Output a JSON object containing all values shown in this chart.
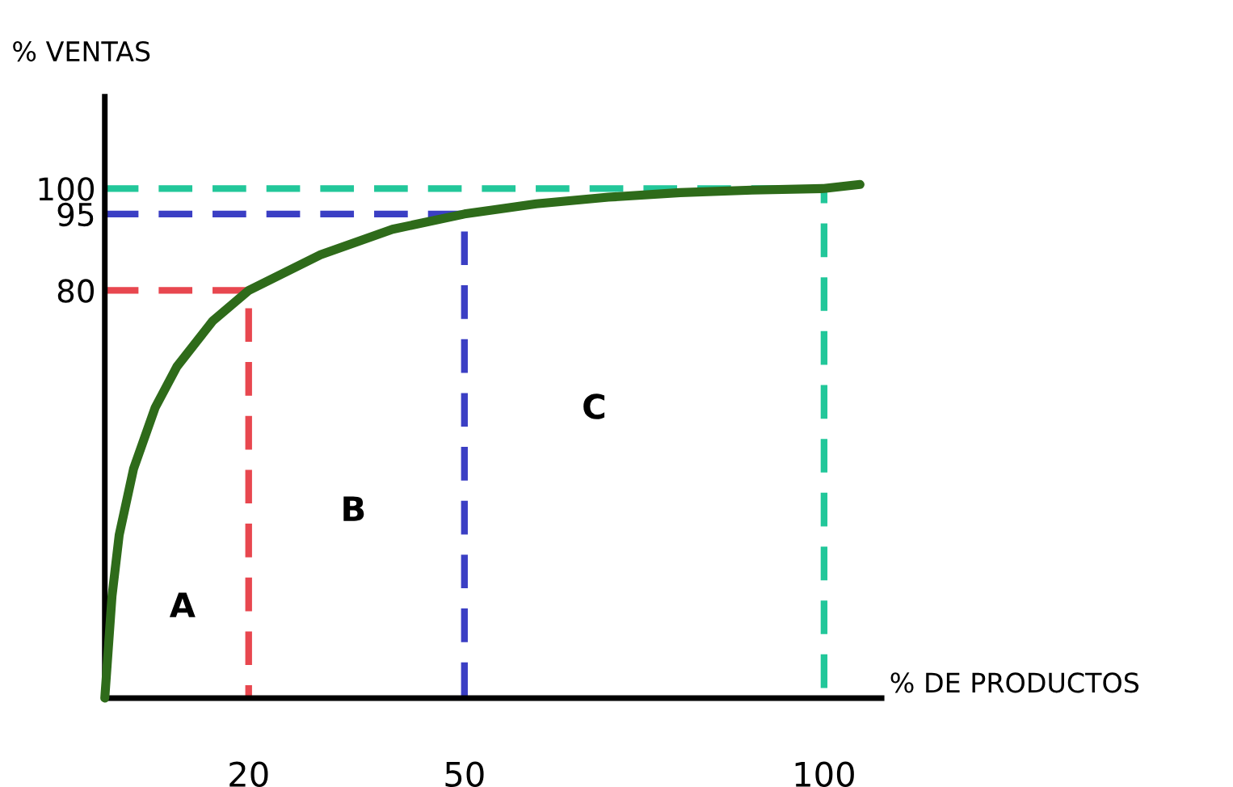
{
  "chart_data": {
    "type": "line",
    "xlabel": "% DE PRODUCTOS",
    "ylabel": "% VENTAS",
    "xlim": [
      0,
      108
    ],
    "ylim": [
      0,
      118
    ],
    "xticks": [
      20,
      50,
      100
    ],
    "yticks": [
      80,
      95,
      100
    ],
    "grid": false,
    "marker": "none",
    "series": [
      {
        "color": "#2e6b1a",
        "line_style": "solid",
        "x": [
          0,
          1,
          2,
          4,
          7,
          10,
          15,
          20,
          30,
          40,
          50,
          60,
          70,
          80,
          90,
          100,
          105
        ],
        "values": [
          0,
          20,
          32,
          45,
          57,
          65,
          74,
          80,
          87,
          92,
          95,
          97,
          98.3,
          99.2,
          99.7,
          100,
          100.8
        ]
      },
      {
        "color": "#e8474f",
        "line_style": "dashed",
        "x": [
          0,
          20,
          20
        ],
        "values": [
          80,
          80,
          0
        ]
      },
      {
        "color": "#3b3fc4",
        "line_style": "dashed",
        "x": [
          0,
          50,
          50
        ],
        "values": [
          95,
          95,
          0
        ]
      },
      {
        "color": "#22c79a",
        "line_style": "dashed",
        "x": [
          0,
          100,
          100
        ],
        "values": [
          100,
          100,
          0
        ]
      }
    ],
    "annotations": [
      "A",
      "B",
      "C"
    ]
  }
}
